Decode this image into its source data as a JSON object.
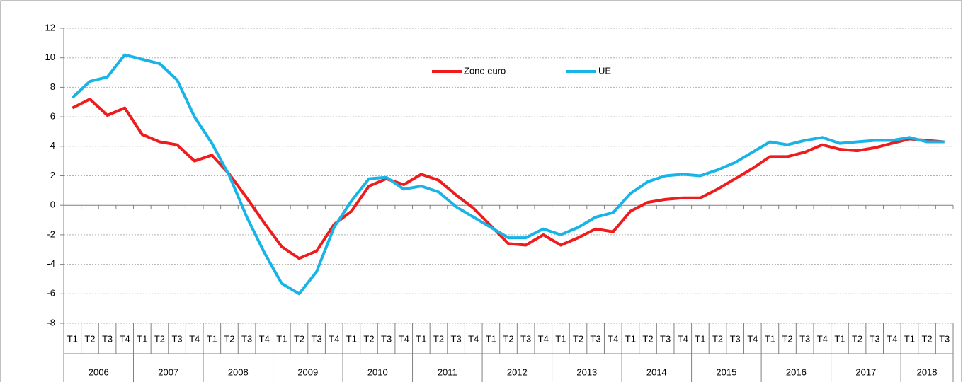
{
  "chart_data": {
    "type": "line",
    "categories": [
      "T1",
      "T2",
      "T3",
      "T4",
      "T1",
      "T2",
      "T3",
      "T4",
      "T1",
      "T2",
      "T3",
      "T4",
      "T1",
      "T2",
      "T3",
      "T4",
      "T1",
      "T2",
      "T3",
      "T4",
      "T1",
      "T2",
      "T3",
      "T4",
      "T1",
      "T2",
      "T3",
      "T4",
      "T1",
      "T2",
      "T3",
      "T4",
      "T1",
      "T2",
      "T3",
      "T4",
      "T1",
      "T2",
      "T3",
      "T4",
      "T1",
      "T2",
      "T3",
      "T4",
      "T1",
      "T2",
      "T3",
      "T4",
      "T1",
      "T2",
      "T3"
    ],
    "years": [
      "2006",
      "2007",
      "2008",
      "2009",
      "2010",
      "2011",
      "2012",
      "2013",
      "2014",
      "2015",
      "2016",
      "2017",
      "2018"
    ],
    "series": [
      {
        "name": "Zone euro",
        "color": "#ee1c1c",
        "values": [
          6.6,
          7.2,
          6.1,
          6.6,
          4.8,
          4.3,
          4.1,
          3.0,
          3.4,
          2.1,
          0.5,
          -1.2,
          -2.8,
          -3.6,
          -3.1,
          -1.3,
          -0.4,
          1.3,
          1.8,
          1.4,
          2.1,
          1.7,
          0.7,
          -0.2,
          -1.4,
          -2.6,
          -2.7,
          -2.0,
          -2.7,
          -2.2,
          -1.6,
          -1.8,
          -0.4,
          0.2,
          0.4,
          0.5,
          0.5,
          1.1,
          1.8,
          2.5,
          3.3,
          3.3,
          3.6,
          4.1,
          3.8,
          3.7,
          3.9,
          4.2,
          4.5,
          4.4,
          4.3
        ]
      },
      {
        "name": "UE",
        "color": "#18b4e8",
        "values": [
          7.3,
          8.4,
          8.7,
          10.2,
          9.9,
          9.6,
          8.5,
          6.0,
          4.2,
          2.0,
          -0.8,
          -3.2,
          -5.3,
          -6.0,
          -4.5,
          -1.5,
          0.3,
          1.8,
          1.9,
          1.1,
          1.3,
          0.9,
          -0.1,
          -0.8,
          -1.5,
          -2.2,
          -2.2,
          -1.6,
          -2.0,
          -1.5,
          -0.8,
          -0.5,
          0.8,
          1.6,
          2.0,
          2.1,
          2.0,
          2.4,
          2.9,
          3.6,
          4.3,
          4.1,
          4.4,
          4.6,
          4.2,
          4.3,
          4.4,
          4.4,
          4.6,
          4.3,
          4.3
        ]
      }
    ],
    "ylim": [
      -8,
      12
    ],
    "yticks": [
      -8,
      -6,
      -4,
      -2,
      0,
      2,
      4,
      6,
      8,
      10,
      12
    ],
    "grid": true,
    "legend": "top"
  }
}
